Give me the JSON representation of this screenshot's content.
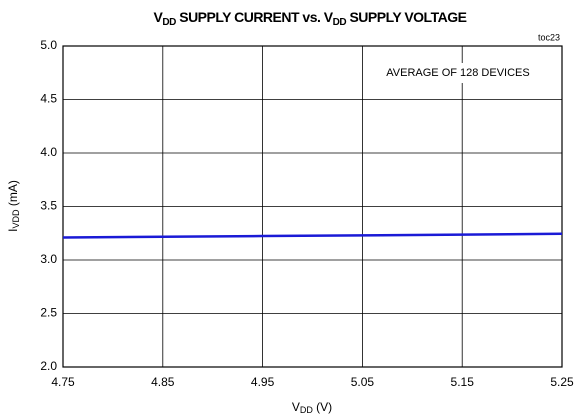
{
  "chart_data": {
    "type": "line",
    "title": [
      "V",
      "DD",
      " SUPPLY CURRENT vs. V",
      "DD",
      " SUPPLY VOLTAGE"
    ],
    "x_label": [
      "V",
      "DD",
      " (V)"
    ],
    "y_label": [
      "I",
      "VDD",
      " (mA)"
    ],
    "annotations": [
      "toc23",
      "AVERAGE OF 128 DEVICES"
    ],
    "series": [
      {
        "name": "IVDD",
        "color": "#1a1ad6",
        "x": [
          4.75,
          4.85,
          4.95,
          5.05,
          5.15,
          5.25
        ],
        "values": [
          3.21,
          3.217,
          3.224,
          3.23,
          3.237,
          3.245
        ]
      }
    ],
    "xlim": [
      4.75,
      5.25
    ],
    "xticks": [
      4.75,
      4.85,
      4.95,
      5.05,
      5.15,
      5.25
    ],
    "ylim": [
      2,
      5
    ],
    "yticks": [
      {
        "value": 2,
        "label": "2.0"
      },
      2.5,
      {
        "value": 3,
        "label": "3.0"
      },
      3.5,
      {
        "value": 4,
        "label": "4.0"
      },
      4.5,
      {
        "value": 5,
        "label": "5.0"
      }
    ],
    "grid": true
  }
}
